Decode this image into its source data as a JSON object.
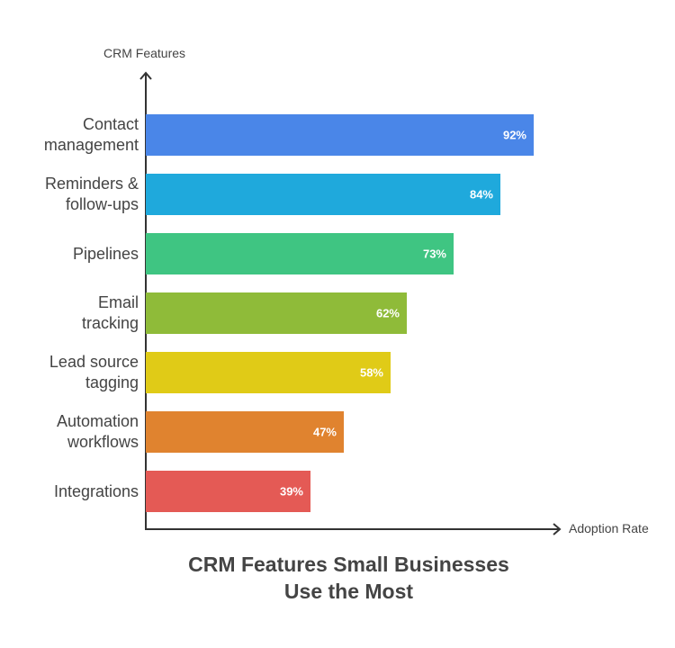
{
  "chart_data": {
    "type": "bar",
    "orientation": "horizontal",
    "title": "CRM Features Small Businesses Use the Most",
    "title_lines": [
      "CRM Features Small Businesses",
      "Use the Most"
    ],
    "xlabel": "Adoption Rate",
    "ylabel": "CRM Features",
    "categories": [
      "Contact management",
      "Reminders & follow-ups",
      "Pipelines",
      "Email tracking",
      "Lead source tagging",
      "Automation workflows",
      "Integrations"
    ],
    "category_lines": [
      [
        "Contact",
        "management"
      ],
      [
        "Reminders &",
        "follow-ups"
      ],
      [
        "Pipelines"
      ],
      [
        "Email",
        "tracking"
      ],
      [
        "Lead source",
        "tagging"
      ],
      [
        "Automation",
        "workflows"
      ],
      [
        "Integrations"
      ]
    ],
    "values": [
      92,
      84,
      73,
      62,
      58,
      47,
      39
    ],
    "value_labels": [
      "92%",
      "84%",
      "73%",
      "62%",
      "58%",
      "47%",
      "39%"
    ],
    "colors": [
      "#4a86e8",
      "#1fa9dc",
      "#3fc582",
      "#8fbb39",
      "#e0cb17",
      "#e0832f",
      "#e45a55"
    ],
    "xlim": [
      0,
      100
    ],
    "grid": false,
    "legend": null
  }
}
